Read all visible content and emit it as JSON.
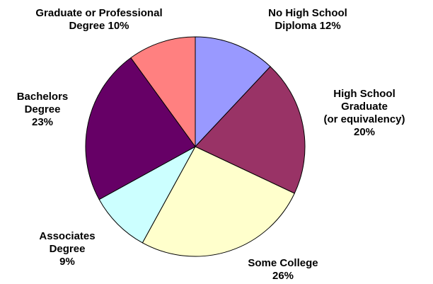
{
  "chart_data": {
    "type": "pie",
    "slices": [
      {
        "lines": [
          "No High School",
          "Diploma 12%"
        ],
        "value": 12,
        "color": "#9999FF"
      },
      {
        "lines": [
          "High School",
          "Graduate",
          "(or equivalency)",
          "20%"
        ],
        "value": 20,
        "color": "#993366"
      },
      {
        "lines": [
          "Some College",
          "26%"
        ],
        "value": 26,
        "color": "#FFFFCC"
      },
      {
        "lines": [
          "Associates",
          "Degree",
          "9%"
        ],
        "value": 9,
        "color": "#CCFFFF"
      },
      {
        "lines": [
          "Bachelors",
          "Degree",
          "23%"
        ],
        "value": 23,
        "color": "#660066"
      },
      {
        "lines": [
          "Graduate or Professional",
          "Degree 10%"
        ],
        "value": 10,
        "color": "#FF8080"
      }
    ],
    "start_angle_deg": 0,
    "direction": "clockwise",
    "legend": "none"
  }
}
